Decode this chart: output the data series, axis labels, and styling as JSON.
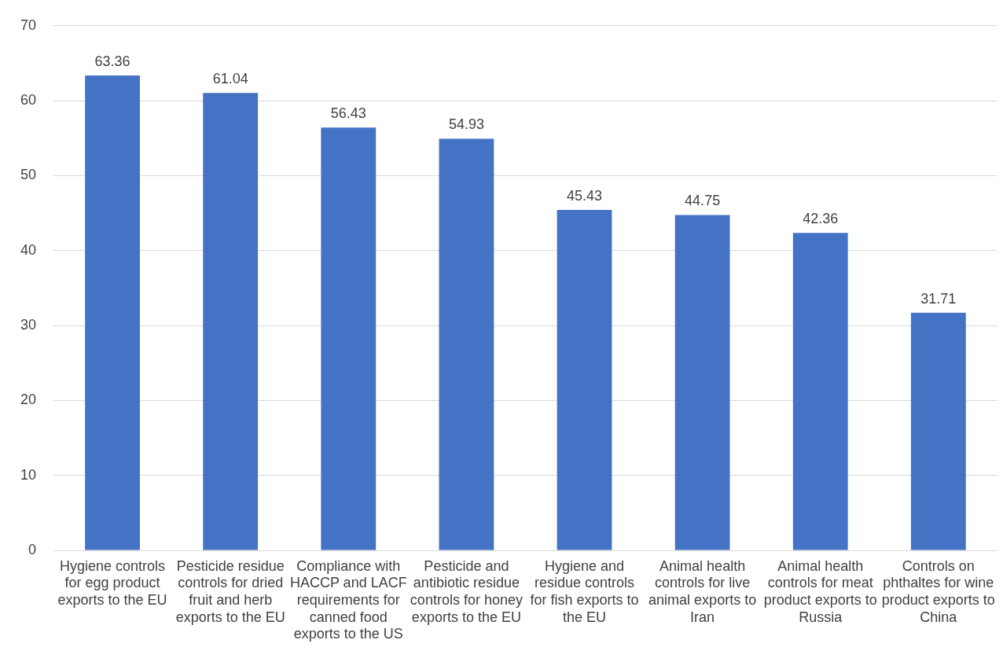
{
  "chart_data": {
    "type": "bar",
    "categories": [
      "Hygiene controls for egg product exports to the EU",
      "Pesticide residue controls for dried fruit and herb exports to the EU",
      "Compliance with HACCP and LACF requirements for canned food exports to the US",
      "Pesticide and antibiotic residue controls for honey exports to the EU",
      "Hygiene and residue controls for fish exports to the EU",
      "Animal health controls for live animal exports to Iran",
      "Animal health controls for meat product exports to Russia",
      "Controls on phthaltes for wine product exports to China"
    ],
    "values": [
      63.36,
      61.04,
      56.43,
      54.93,
      45.43,
      44.75,
      42.36,
      31.71
    ],
    "color": "#4472c4",
    "ylim": [
      0,
      70
    ],
    "yticks": [
      0,
      10,
      20,
      30,
      40,
      50,
      60,
      70
    ],
    "grid": "y",
    "data_labels": true,
    "legend": false
  }
}
